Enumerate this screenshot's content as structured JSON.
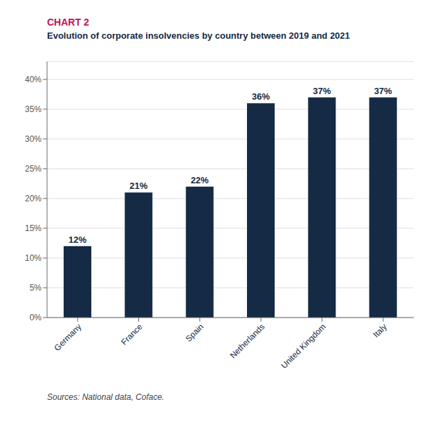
{
  "chart_data": {
    "type": "bar",
    "title": "CHART 2",
    "subtitle": "Evolution of corporate insolvencies by country between 2019 and 2021",
    "annotations": [
      "Sources: National data, Coface."
    ],
    "categories": [
      "Germany",
      "France",
      "Spain",
      "Netherlands",
      "United Kingdom",
      "Italy"
    ],
    "values": [
      12,
      21,
      22,
      36,
      37,
      37
    ],
    "value_labels": [
      "12%",
      "21%",
      "22%",
      "36%",
      "37%",
      "37%"
    ],
    "data_labels": true,
    "color": "#152a45",
    "ylim": [
      0,
      43
    ],
    "yticks": [
      {
        "value": 0,
        "label": "0%"
      },
      {
        "value": 5,
        "label": "5%"
      },
      {
        "value": 10,
        "label": "10%"
      },
      {
        "value": 15,
        "label": "15%"
      },
      {
        "value": 20,
        "label": "20%"
      },
      {
        "value": 25,
        "label": "25%"
      },
      {
        "value": 30,
        "label": "30%"
      },
      {
        "value": 35,
        "label": "35%"
      },
      {
        "value": 40,
        "label": "40%"
      }
    ],
    "grid": true
  }
}
